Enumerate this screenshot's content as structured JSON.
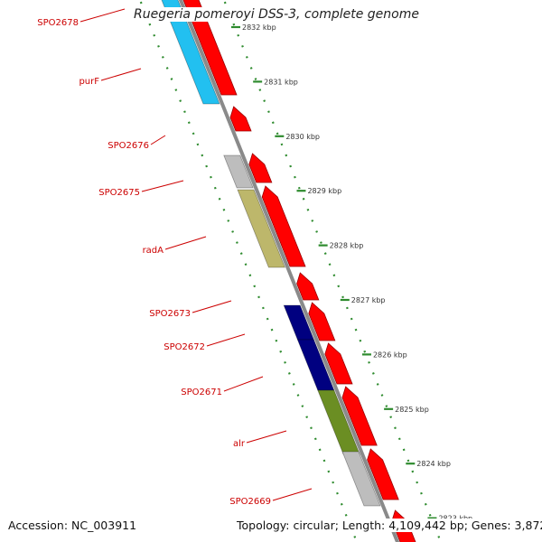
{
  "title": "Ruegeria pomeroyi DSS-3, complete genome",
  "footer": {
    "accession": "Accession: NC_003911",
    "summary": "Topology: circular; Length: 4,109,442 bp; Genes: 3,872"
  },
  "colors": {
    "backbone": "#8a8a8a",
    "ruler": "#2e8b2e",
    "cds_forward": "#ff0000",
    "label": "#cc0000",
    "tick_label": "#333333"
  },
  "ruler_labels": [
    "2832 kbp",
    "2831 kbp",
    "2830 kbp",
    "2829 kbp",
    "2828 kbp",
    "2827 kbp",
    "2826 kbp",
    "2825 kbp",
    "2824 kbp",
    "2823 kbp"
  ],
  "genes": [
    {
      "name": "SPO2678",
      "color": "#ffffff"
    },
    {
      "name": "purF",
      "color": "#22c0f0"
    },
    {
      "name": "SPO2676",
      "color": "#ffffff"
    },
    {
      "name": "SPO2675",
      "color": "#bdbdbd"
    },
    {
      "name": "radA",
      "color": "#bdb76b"
    },
    {
      "name": "SPO2673",
      "color": "#ffffff"
    },
    {
      "name": "SPO2672",
      "color": "#000080"
    },
    {
      "name": "SPO2671",
      "color": "#000080"
    },
    {
      "name": "alr",
      "color": "#6b8e23"
    },
    {
      "name": "SPO2669",
      "color": "#bdbdbd"
    }
  ]
}
